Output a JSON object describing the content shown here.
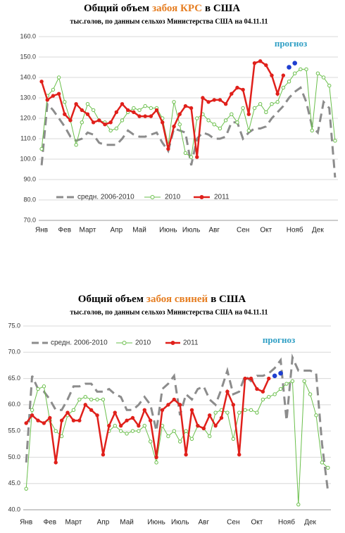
{
  "chart_data": [
    {
      "type": "line",
      "title": [
        "Общий объем",
        "забоя КРС",
        "в США"
      ],
      "title_colors": [
        "#000000",
        "#e67e22",
        "#000000"
      ],
      "subtitle": "тыс.голов, по данным сельхоз Министерства США на 04.11.11",
      "categories": [
        "Янв",
        null,
        null,
        null,
        "Фев",
        null,
        null,
        null,
        "Март",
        null,
        null,
        null,
        null,
        "Апр",
        null,
        null,
        null,
        "Май",
        null,
        null,
        null,
        null,
        "Июнь",
        null,
        null,
        null,
        "Июль",
        null,
        null,
        null,
        "Авг",
        null,
        null,
        null,
        null,
        "Сен",
        null,
        null,
        null,
        "Окт",
        null,
        null,
        null,
        null,
        "Нояб",
        null,
        null,
        null,
        "Дек",
        null,
        null,
        null
      ],
      "ylim": [
        70,
        160
      ],
      "yticks": [
        {
          "value": 70,
          "label": "70.0"
        },
        {
          "value": 80,
          "label": "80.0"
        },
        {
          "value": 90,
          "label": "90.0"
        },
        {
          "value": 100,
          "label": "100.0"
        },
        {
          "value": 110,
          "label": "110.0"
        },
        {
          "value": 120,
          "label": "120.0"
        },
        {
          "value": 130,
          "label": "130.0"
        },
        {
          "value": 140,
          "label": "140.0"
        },
        {
          "value": 150,
          "label": "150.0"
        },
        {
          "value": 160,
          "label": "160.0"
        }
      ],
      "grid": true,
      "series": [
        {
          "name": "средн. 2006-2010",
          "color": "#8c8c8c",
          "style": "dashed",
          "values": [
            97,
            127,
            124,
            120,
            116,
            111,
            109,
            110,
            113,
            112,
            108,
            107,
            107,
            107,
            110,
            114,
            112,
            111,
            111,
            112,
            113,
            108,
            104,
            115,
            114,
            113,
            97,
            110,
            113,
            112,
            110,
            110,
            111,
            118,
            118,
            110,
            113,
            115,
            115,
            116,
            120,
            123,
            126,
            130,
            133,
            135,
            128,
            116,
            113,
            128,
            125,
            91
          ]
        },
        {
          "name": "2010",
          "color": "#6abf4b",
          "style": "open",
          "values": [
            105,
            131,
            134,
            140,
            128,
            119,
            107,
            118,
            127,
            124,
            119,
            118,
            114,
            115,
            119,
            123,
            125,
            124,
            126,
            125,
            125,
            120,
            107,
            128,
            117,
            103,
            101,
            120,
            122,
            119,
            117,
            115,
            119,
            122,
            118,
            125,
            114,
            125,
            127,
            123,
            127,
            128,
            135,
            138,
            142,
            144,
            144,
            114,
            142,
            140,
            136,
            109
          ]
        },
        {
          "name": "2011",
          "color": "#e0201b",
          "style": "filled",
          "values": [
            138,
            129,
            131,
            132,
            122,
            119,
            127,
            124,
            122,
            118,
            119,
            117,
            118,
            123,
            127,
            124,
            123,
            121,
            121,
            121,
            124,
            118,
            105,
            116,
            122,
            126,
            125,
            101,
            130,
            128,
            129,
            129,
            127,
            132,
            135,
            134,
            122,
            147,
            148,
            146,
            141,
            132,
            141,
            null,
            null,
            null,
            null,
            null,
            null,
            null,
            null,
            null
          ]
        }
      ],
      "forecast": {
        "label": "прогноз",
        "color": "#1f3fd0",
        "values": [
          null,
          null,
          null,
          null,
          null,
          null,
          null,
          null,
          null,
          null,
          null,
          null,
          null,
          null,
          null,
          null,
          null,
          null,
          null,
          null,
          null,
          null,
          null,
          null,
          null,
          null,
          null,
          null,
          null,
          null,
          null,
          null,
          null,
          null,
          null,
          null,
          null,
          null,
          null,
          null,
          null,
          null,
          null,
          145,
          147,
          null,
          null,
          null,
          null,
          null,
          null,
          null
        ]
      }
    },
    {
      "type": "line",
      "title": [
        "Общий объем",
        "забоя свиней",
        "в США"
      ],
      "title_colors": [
        "#000000",
        "#e67e22",
        "#000000"
      ],
      "subtitle": "тыс.голов, по данным сельхоз Министерства США на 04.11.11",
      "categories": [
        "Янв",
        null,
        null,
        null,
        "Фев",
        null,
        null,
        null,
        "Март",
        null,
        null,
        null,
        null,
        "Апр",
        null,
        null,
        null,
        "Май",
        null,
        null,
        null,
        null,
        "Июнь",
        null,
        null,
        null,
        "Июль",
        null,
        null,
        null,
        "Авг",
        null,
        null,
        null,
        null,
        "Сен",
        null,
        null,
        null,
        "Окт",
        null,
        null,
        null,
        null,
        "Нояб",
        null,
        null,
        null,
        "Дек",
        null,
        null,
        null
      ],
      "ylim": [
        40,
        75
      ],
      "yticks": [
        {
          "value": 40,
          "label": "40.0"
        },
        {
          "value": 45,
          "label": "45.0"
        },
        {
          "value": 50,
          "label": "50.0"
        },
        {
          "value": 55,
          "label": "55.0"
        },
        {
          "value": 60,
          "label": "60.0"
        },
        {
          "value": 65,
          "label": "65.0"
        },
        {
          "value": 70,
          "label": "70.0"
        },
        {
          "value": 75,
          "label": "75.0"
        }
      ],
      "grid": true,
      "series": [
        {
          "name": "средн. 2006-2010",
          "color": "#8c8c8c",
          "style": "dashed",
          "values": [
            49,
            65.5,
            63,
            62.5,
            61,
            59,
            59,
            61,
            63.5,
            63.5,
            64,
            64,
            62.5,
            62.5,
            63,
            62,
            61.5,
            59,
            59,
            60,
            61.5,
            60,
            55,
            63,
            64,
            65.5,
            58,
            62,
            61,
            63,
            63.5,
            61,
            60,
            63,
            66.5,
            62,
            62.5,
            65.5,
            64.5,
            65.5,
            65.5,
            66,
            67,
            68.5,
            57,
            69,
            66.5,
            66.5,
            66.5,
            66,
            52.5,
            43.5
          ]
        },
        {
          "name": "2010",
          "color": "#6abf4b",
          "style": "open",
          "values": [
            44,
            59,
            63,
            63.5,
            57,
            55,
            54,
            58,
            59,
            61,
            61.5,
            61,
            61,
            61,
            55,
            56,
            55,
            54.5,
            55,
            55,
            56,
            53,
            49,
            56,
            54,
            55,
            53,
            55,
            53.5,
            56,
            55.5,
            54,
            58.5,
            59,
            58.5,
            53.5,
            58.5,
            59,
            59,
            58.5,
            61,
            61.5,
            62,
            63,
            64,
            64.5,
            41,
            64.5,
            62,
            58,
            49,
            48
          ]
        },
        {
          "name": "2011",
          "color": "#e0201b",
          "style": "filled",
          "values": [
            56.5,
            58,
            57,
            56.5,
            57.5,
            49,
            57,
            58.5,
            57,
            57,
            60,
            59,
            58,
            50.5,
            56,
            58.5,
            56,
            57,
            57.5,
            56,
            59,
            57,
            50,
            59,
            60,
            61,
            60,
            50.5,
            59,
            56,
            55.5,
            58,
            56,
            57.5,
            62.5,
            60,
            50.5,
            65,
            65,
            63,
            62.5,
            65,
            null,
            null,
            null,
            null,
            null,
            null,
            null,
            null,
            null,
            null
          ]
        }
      ],
      "forecast": {
        "label": "прогноз",
        "color": "#1f3fd0",
        "values": [
          null,
          null,
          null,
          null,
          null,
          null,
          null,
          null,
          null,
          null,
          null,
          null,
          null,
          null,
          null,
          null,
          null,
          null,
          null,
          null,
          null,
          null,
          null,
          null,
          null,
          null,
          null,
          null,
          null,
          null,
          null,
          null,
          null,
          null,
          null,
          null,
          null,
          null,
          null,
          null,
          null,
          null,
          65.5,
          66,
          null,
          null,
          null,
          null,
          null,
          null,
          null,
          null
        ]
      }
    }
  ]
}
